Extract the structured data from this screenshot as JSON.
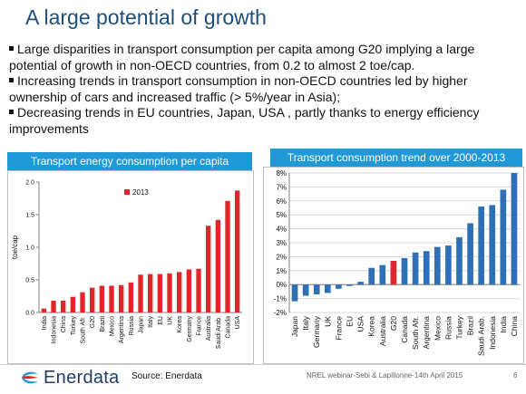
{
  "slide": {
    "title": "A large potential of growth",
    "bullets": [
      "Large disparities  in transport consumption per capita among G20 implying a large potential of growth in non-OECD countries, from 0.2 to almost 2 toe/cap.",
      "Increasing trends in transport consumption in non-OECD countries led by higher ownership of cars and increased traffic (> 5%/year in Asia);",
      "Decreasing trends in EU countries, Japan, USA , partly thanks to energy efficiency improvements"
    ],
    "source": "Source: Enerdata",
    "footer_note": "NREL webinar-Sebi & Lapillonne-14th April 2015",
    "page_number": "6",
    "logo_text": "Enerdata"
  },
  "colors": {
    "header_blue": "#1f9ad6",
    "bar_red": "#e0262a",
    "bar_blue": "#2e6fb5",
    "highlight_red": "#e0262a",
    "title_blue": "#1f4e79"
  },
  "chart_data": [
    {
      "type": "bar",
      "title": "Transport energy consumption per capita",
      "ylabel": "toe/cap",
      "ylim": [
        0,
        2.0
      ],
      "yticks": [
        "0.0",
        "0.5",
        "1.0",
        "1.5",
        "2.0"
      ],
      "ytick_values": [
        0,
        0.5,
        1.0,
        1.5,
        2.0
      ],
      "categories": [
        "India",
        "Indonesia",
        "China",
        "Turkey",
        "South Afr.",
        "G20",
        "Brazil",
        "Mexico",
        "Argentina",
        "Russia",
        "Japan",
        "Italy",
        "EU",
        "UK",
        "Korea",
        "Germany",
        "France",
        "Australia",
        "Saudi Arab.",
        "Canada",
        "USA"
      ],
      "series": [
        {
          "name": "2013",
          "values": [
            0.06,
            0.18,
            0.18,
            0.24,
            0.31,
            0.38,
            0.41,
            0.41,
            0.42,
            0.46,
            0.58,
            0.59,
            0.59,
            0.6,
            0.62,
            0.66,
            0.67,
            1.33,
            1.42,
            1.71,
            1.87
          ]
        }
      ],
      "legend_position": "top-center",
      "grid": false
    },
    {
      "type": "bar",
      "title": "Transport  consumption  trend over 2000-2013",
      "ylim": [
        -2,
        8
      ],
      "yticks": [
        "-2%",
        "-1%",
        "0%",
        "1%",
        "2%",
        "3%",
        "4%",
        "5%",
        "6%",
        "7%",
        "8%"
      ],
      "ytick_values": [
        -2,
        -1,
        0,
        1,
        2,
        3,
        4,
        5,
        6,
        7,
        8
      ],
      "categories": [
        "Japan",
        "Italy",
        "Germany",
        "UK",
        "France",
        "EU",
        "USA",
        "Korea",
        "Australia",
        "G20",
        "Canada",
        "South Afr.",
        "Argentina",
        "Mexico",
        "Russia",
        "Turkey",
        "Brazil",
        "Saudi Arab.",
        "Indonesia",
        "India",
        "China"
      ],
      "series": [
        {
          "values": [
            -1.2,
            -0.8,
            -0.7,
            -0.6,
            -0.3,
            -0.1,
            0.2,
            1.2,
            1.4,
            1.7,
            1.9,
            2.3,
            2.4,
            2.7,
            2.8,
            3.4,
            4.4,
            5.6,
            5.7,
            6.8,
            8.0
          ]
        }
      ],
      "highlight_category": "G20",
      "grid": true
    }
  ]
}
